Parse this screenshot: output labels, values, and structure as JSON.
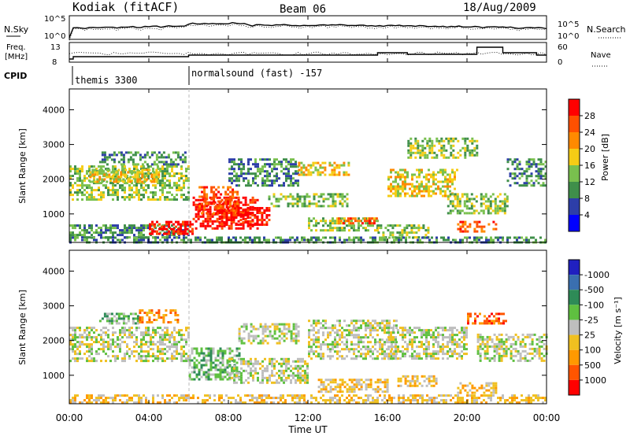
{
  "header": {
    "radar": "Kodiak (fitACF)",
    "beam": "Beam 06",
    "date": "18/Aug/2009"
  },
  "noise_panel": {
    "left_label": "N.Sky",
    "right_label": "N.Search",
    "left_ticks": [
      "10^5",
      "10^0"
    ],
    "right_ticks": [
      "10^5",
      "10^0"
    ]
  },
  "freq_panel": {
    "left_label_1": "Freq.",
    "left_label_2": "[MHz]",
    "right_label": "Nave",
    "left_ticks": [
      "13",
      "8"
    ],
    "right_ticks": [
      "60",
      "0"
    ]
  },
  "cpid_panel": {
    "label": "CPID",
    "segments": [
      {
        "start_hour": 0,
        "end_hour": 6,
        "text": "themis 3300"
      },
      {
        "start_hour": 6,
        "end_hour": 24,
        "text": "normalsound (fast) -157"
      }
    ]
  },
  "chart_data": [
    {
      "type": "heatmap",
      "name": "power",
      "xlabel": "Time UT",
      "ylabel": "Slant Range [km]",
      "x_ticks": [
        "00:00",
        "04:00",
        "08:00",
        "12:00",
        "16:00",
        "20:00",
        "00:00"
      ],
      "x_range_hours": [
        0,
        24
      ],
      "y_ticks": [
        1000,
        2000,
        3000,
        4000
      ],
      "ylim": [
        180,
        4600
      ],
      "colorbar_label": "Power [dB]",
      "colorbar_ticks": [
        "4",
        "8",
        "12",
        "16",
        "20",
        "24",
        "28"
      ],
      "colors": [
        "#0000ff",
        "#2d3ea8",
        "#3f8f4a",
        "#79c04e",
        "#f5cc15",
        "#ff8a00",
        "#ff5000",
        "#ff0000"
      ],
      "regions": [
        {
          "t0": 0.0,
          "t1": 6.0,
          "r0": 1400,
          "r1": 2400,
          "level": 3
        },
        {
          "t0": 1.0,
          "t1": 4.5,
          "r0": 1900,
          "r1": 2300,
          "level": 4
        },
        {
          "t0": 1.5,
          "t1": 5.8,
          "r0": 2400,
          "r1": 2800,
          "level": 2
        },
        {
          "t0": 0.0,
          "t1": 6.0,
          "r0": 300,
          "r1": 700,
          "level": 2
        },
        {
          "t0": 4.0,
          "t1": 6.2,
          "r0": 400,
          "r1": 800,
          "level": 7
        },
        {
          "t0": 6.2,
          "t1": 9.5,
          "r0": 600,
          "r1": 1500,
          "level": 7
        },
        {
          "t0": 6.5,
          "t1": 8.5,
          "r0": 1000,
          "r1": 1800,
          "level": 6
        },
        {
          "t0": 7.5,
          "t1": 10.0,
          "r0": 700,
          "r1": 1200,
          "level": 7
        },
        {
          "t0": 8.0,
          "t1": 11.5,
          "r0": 1800,
          "r1": 2600,
          "level": 2
        },
        {
          "t0": 10.0,
          "t1": 14.0,
          "r0": 1200,
          "r1": 1600,
          "level": 3
        },
        {
          "t0": 11.5,
          "t1": 14.0,
          "r0": 2100,
          "r1": 2500,
          "level": 4
        },
        {
          "t0": 12.0,
          "t1": 15.5,
          "r0": 500,
          "r1": 900,
          "level": 3
        },
        {
          "t0": 13.5,
          "t1": 15.5,
          "r0": 700,
          "r1": 900,
          "level": 6
        },
        {
          "t0": 16.0,
          "t1": 19.5,
          "r0": 1500,
          "r1": 2300,
          "level": 4
        },
        {
          "t0": 17.0,
          "t1": 20.5,
          "r0": 2600,
          "r1": 3200,
          "level": 3
        },
        {
          "t0": 19.0,
          "t1": 22.0,
          "r0": 1000,
          "r1": 1600,
          "level": 3
        },
        {
          "t0": 19.5,
          "t1": 21.5,
          "r0": 500,
          "r1": 800,
          "level": 6
        },
        {
          "t0": 15.5,
          "t1": 18.0,
          "r0": 300,
          "r1": 700,
          "level": 3
        },
        {
          "t0": 22.0,
          "t1": 24.0,
          "r0": 1800,
          "r1": 2600,
          "level": 2
        },
        {
          "t0": 0.0,
          "t1": 24.0,
          "r0": 180,
          "r1": 350,
          "level": 2
        }
      ]
    },
    {
      "type": "heatmap",
      "name": "velocity",
      "xlabel": "Time UT",
      "ylabel": "Slant Range [km]",
      "x_ticks": [
        "00:00",
        "04:00",
        "08:00",
        "12:00",
        "16:00",
        "20:00",
        "00:00"
      ],
      "x_range_hours": [
        0,
        24
      ],
      "y_ticks": [
        1000,
        2000,
        3000,
        4000
      ],
      "ylim": [
        180,
        4600
      ],
      "colorbar_label": "Velocity [m s⁻¹]",
      "colorbar_ticks": [
        "1000",
        "500",
        "100",
        "25",
        "-25",
        "-100",
        "-500",
        "-1000"
      ],
      "colors": [
        "#2020c0",
        "#3a6fb0",
        "#2e8b57",
        "#5fc040",
        "#bebebe",
        "#f0c020",
        "#ff9900",
        "#ff5500",
        "#ff0000"
      ],
      "regions": [
        {
          "t0": 0.0,
          "t1": 6.0,
          "r0": 1400,
          "r1": 2400,
          "level": 4
        },
        {
          "t0": 1.5,
          "t1": 3.5,
          "r0": 2500,
          "r1": 2800,
          "level": 3
        },
        {
          "t0": 3.5,
          "t1": 5.5,
          "r0": 2500,
          "r1": 2900,
          "level": 6
        },
        {
          "t0": 6.0,
          "t1": 8.5,
          "r0": 900,
          "r1": 1800,
          "level": 3
        },
        {
          "t0": 8.0,
          "t1": 12.0,
          "r0": 800,
          "r1": 1500,
          "level": 4
        },
        {
          "t0": 8.5,
          "t1": 11.5,
          "r0": 1900,
          "r1": 2500,
          "level": 4
        },
        {
          "t0": 12.0,
          "t1": 16.5,
          "r0": 1500,
          "r1": 2600,
          "level": 4
        },
        {
          "t0": 12.5,
          "t1": 16.0,
          "r0": 500,
          "r1": 900,
          "level": 5
        },
        {
          "t0": 16.0,
          "t1": 20.0,
          "r0": 1500,
          "r1": 2400,
          "level": 4
        },
        {
          "t0": 16.5,
          "t1": 18.5,
          "r0": 700,
          "r1": 1000,
          "level": 5
        },
        {
          "t0": 19.5,
          "t1": 21.5,
          "r0": 500,
          "r1": 800,
          "level": 5
        },
        {
          "t0": 20.0,
          "t1": 22.0,
          "r0": 2500,
          "r1": 2800,
          "level": 7
        },
        {
          "t0": 20.5,
          "t1": 24.0,
          "r0": 1400,
          "r1": 2200,
          "level": 4
        },
        {
          "t0": 0.0,
          "t1": 24.0,
          "r0": 180,
          "r1": 450,
          "level": 5
        }
      ]
    }
  ]
}
